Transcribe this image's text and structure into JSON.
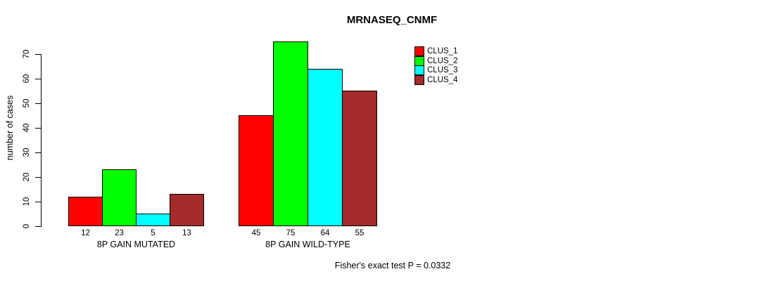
{
  "chart_data": {
    "type": "bar",
    "title": "MRNASEQ_CNMF",
    "ylabel": "number of cases",
    "xlabel": "",
    "ylim": [
      0,
      70
    ],
    "yticks": [
      0,
      10,
      20,
      30,
      40,
      50,
      60,
      70
    ],
    "grid": false,
    "legend_position": "top-right",
    "categories": [
      "8P GAIN MUTATED",
      "8P GAIN WILD-TYPE"
    ],
    "series": [
      {
        "name": "CLUS_1",
        "color": "#FF0000",
        "values": [
          12,
          45
        ]
      },
      {
        "name": "CLUS_2",
        "color": "#00FF00",
        "values": [
          23,
          75
        ]
      },
      {
        "name": "CLUS_3",
        "color": "#00FFFF",
        "values": [
          5,
          64
        ]
      },
      {
        "name": "CLUS_4",
        "color": "#A52A2A",
        "values": [
          13,
          55
        ]
      }
    ],
    "bar_value_labels": [
      [
        12,
        23,
        5,
        13
      ],
      [
        45,
        75,
        64,
        55
      ]
    ],
    "annotation": "Fisher's exact test P = 0.0332",
    "colors": {
      "background": "#FFFFFF",
      "axis": "#000000",
      "text": "#000000",
      "bar_border": "#000000"
    }
  }
}
